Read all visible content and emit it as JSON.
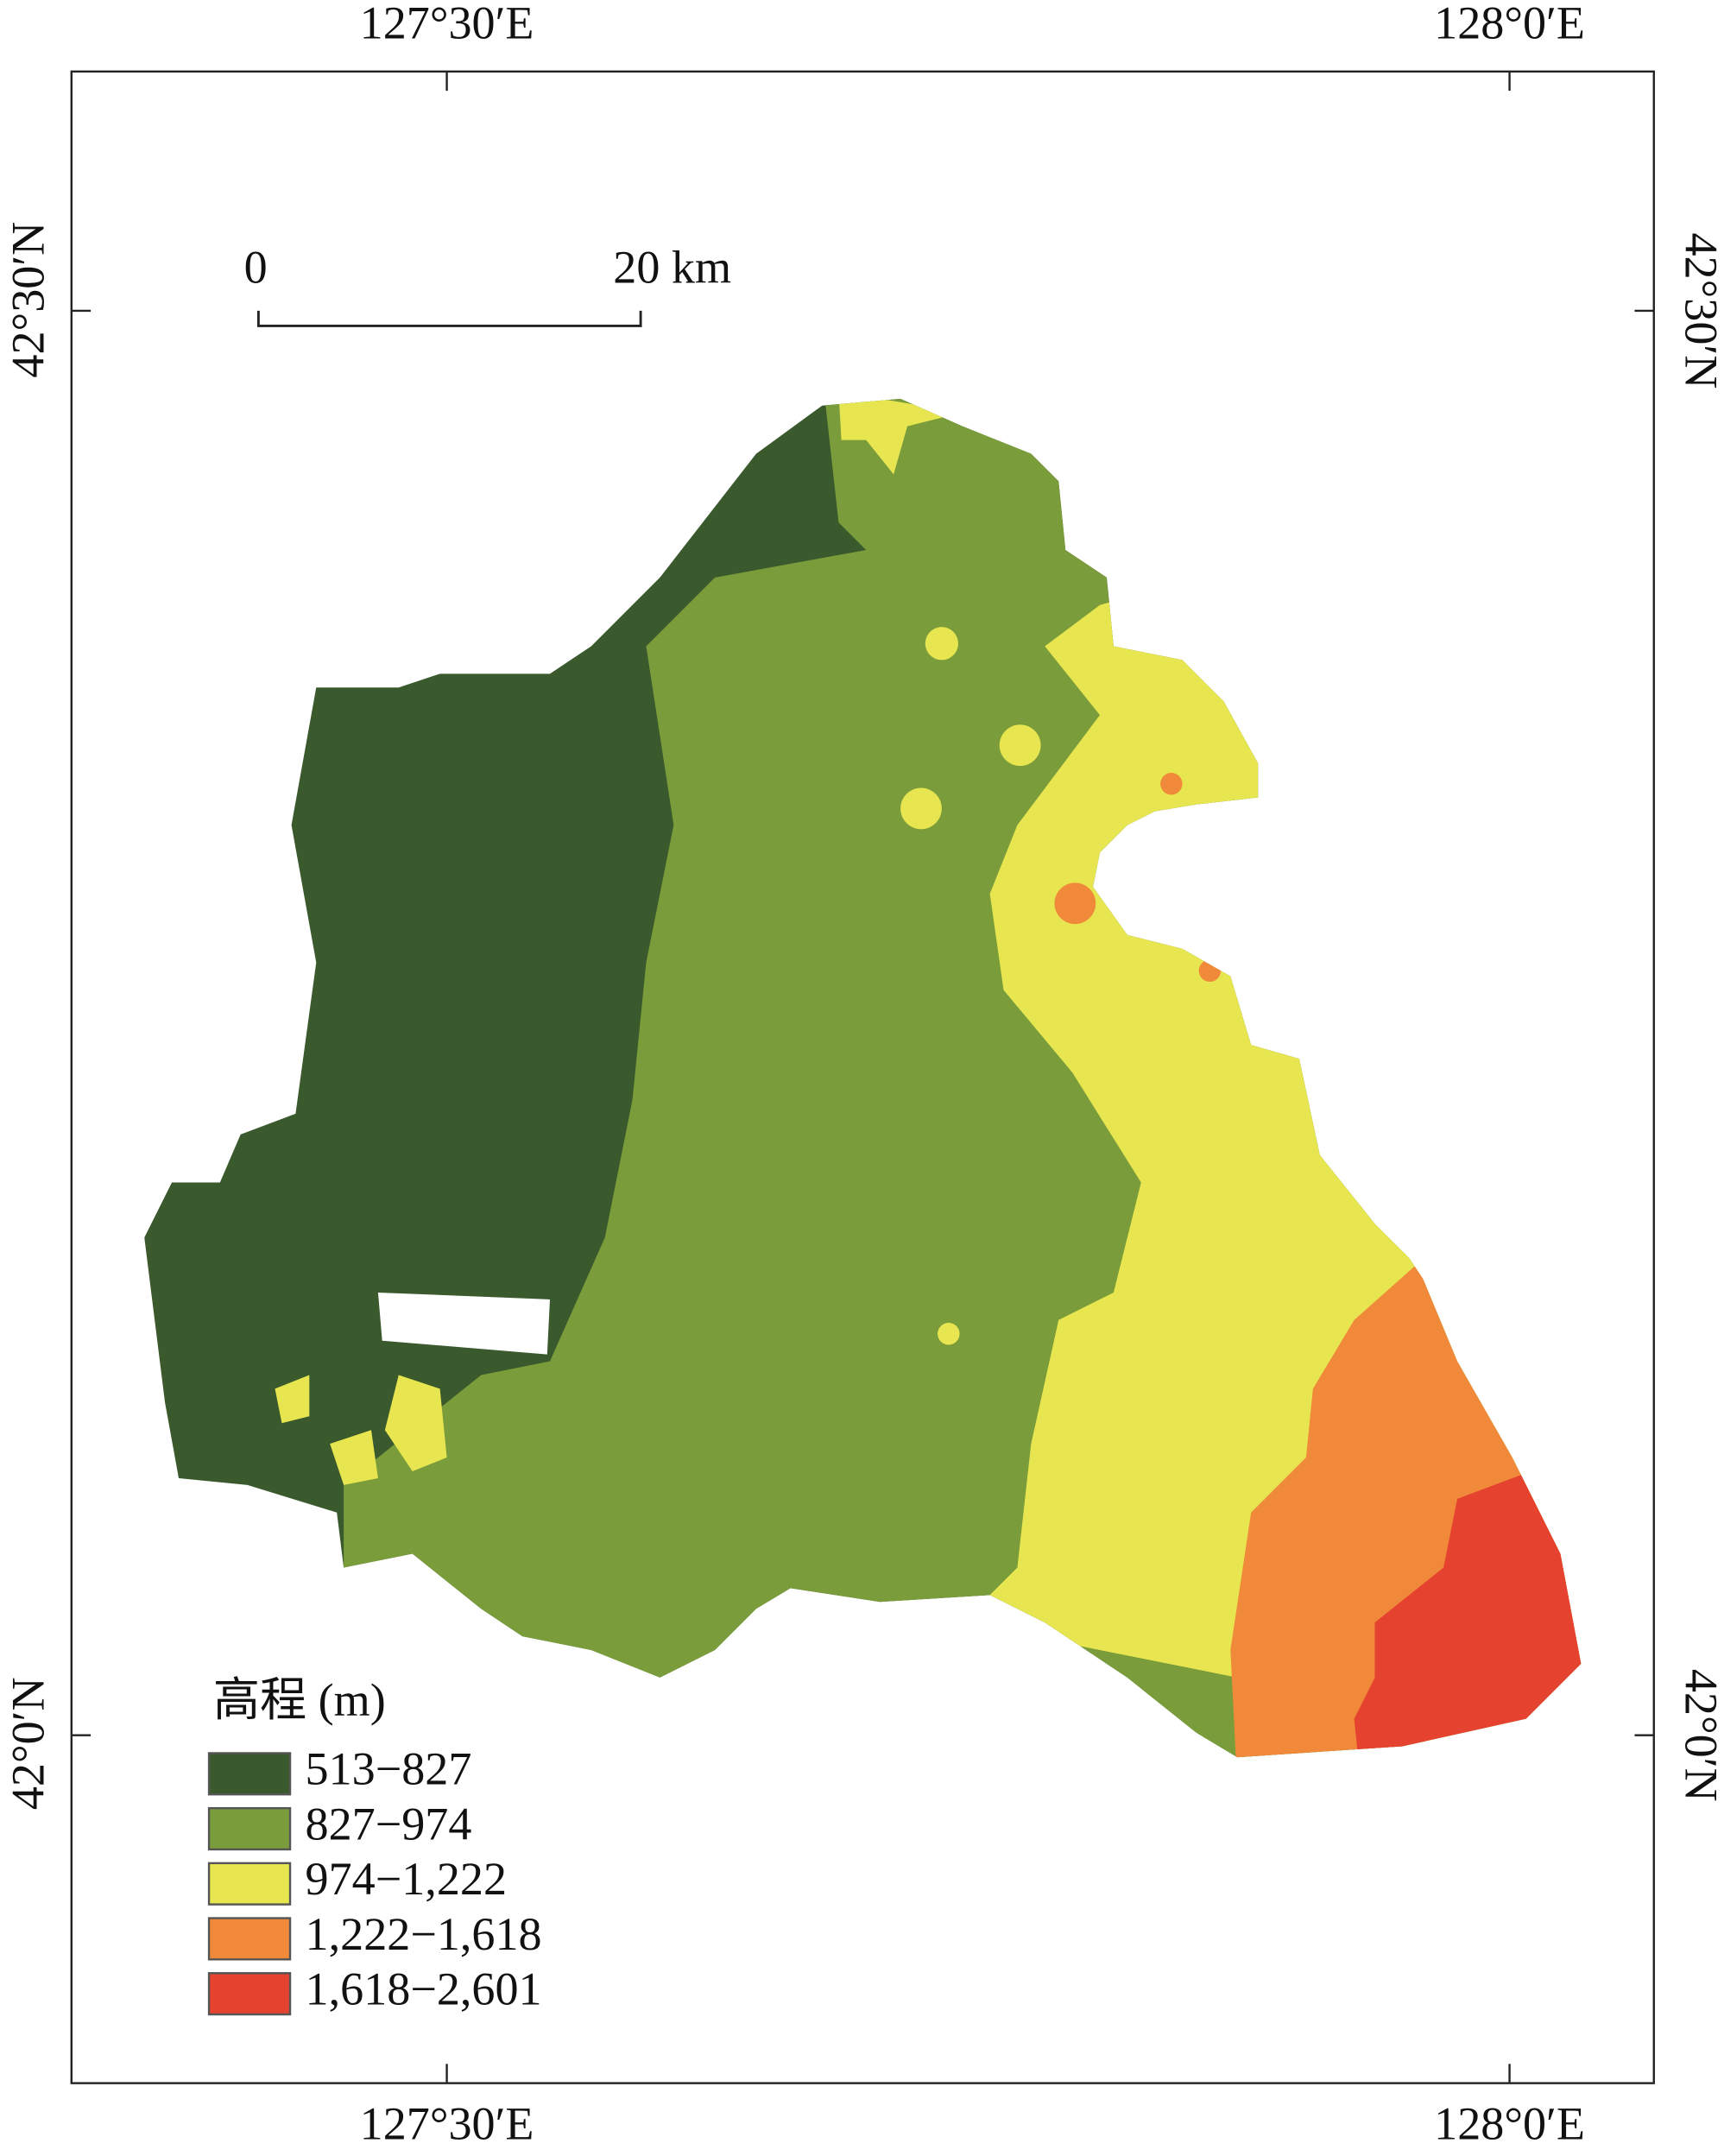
{
  "map": {
    "top_labels": [
      "127°30′E",
      "128°0′E"
    ],
    "bottom_labels": [
      "127°30′E",
      "128°0′E"
    ],
    "left_labels": [
      "42°30′N",
      "42°0′N"
    ],
    "right_labels": [
      "42°30′N",
      "42°0′N"
    ],
    "scale_bar": {
      "start": "0",
      "end": "20 km"
    },
    "legend": {
      "title": "高程 (m)",
      "items": [
        {
          "label": "513−827",
          "color": "#3a5a2e"
        },
        {
          "label": "827−974",
          "color": "#7a9c3a"
        },
        {
          "label": "974−1,222",
          "color": "#e8e650"
        },
        {
          "label": "1,222−1,618",
          "color": "#f08a3a"
        },
        {
          "label": "1,618−2,601",
          "color": "#e54230"
        }
      ]
    }
  }
}
